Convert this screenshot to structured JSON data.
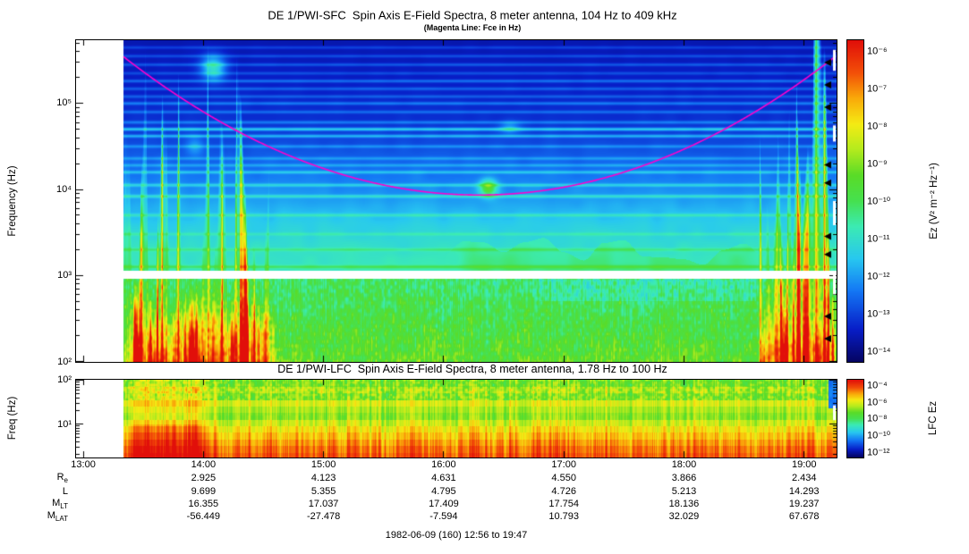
{
  "chart_data": {
    "type": "heatmap",
    "sfc": {
      "title": "DE 1/PWI-SFC  Spin Axis E-Field Spectra, 8 meter antenna, 104 Hz to 409 kHz",
      "subtitle": "(Magenta Line: Fce in Hz)",
      "ylabel": "Frequency (Hz)",
      "colorbar_label": "Ez (V² m⁻² Hz⁻¹)",
      "freq_range_hz": [
        104,
        409000
      ],
      "log_freq_range": [
        2.0,
        5.73
      ],
      "ytick_exps": [
        5,
        4,
        3,
        2
      ],
      "ytick_labels": [
        "10⁵",
        "10⁴",
        "10³",
        "10²"
      ],
      "colorbar_tick_labels": [
        "10⁻⁶",
        "10⁻⁷",
        "10⁻⁸",
        "10⁻⁹",
        "10⁻¹⁰",
        "10⁻¹¹",
        "10⁻¹²",
        "10⁻¹³",
        "10⁻¹⁴"
      ],
      "receiver_gap_log_hz": [
        2.965,
        3.05
      ],
      "fce_line": {
        "color": "#ff00cc",
        "min_hz": 8500,
        "min_log_hz": 3.93,
        "min_hour": 16.3,
        "log_curvature": 0.183
      },
      "background_profile": [
        [
          2.0,
          0.57
        ],
        [
          2.3,
          0.535
        ],
        [
          2.6,
          0.505
        ],
        [
          2.96,
          0.475
        ],
        [
          3.05,
          0.41
        ],
        [
          3.3,
          0.385
        ],
        [
          3.6,
          0.335
        ],
        [
          3.9,
          0.265
        ],
        [
          4.2,
          0.215
        ],
        [
          4.5,
          0.165
        ],
        [
          4.8,
          0.125
        ],
        [
          5.1,
          0.105
        ],
        [
          5.73,
          0.075
        ]
      ],
      "interference_lines": [
        [
          3.1,
          0.09
        ],
        [
          3.3,
          0.07
        ],
        [
          3.48,
          0.06
        ],
        [
          3.7,
          0.09
        ],
        [
          3.92,
          0.12
        ],
        [
          4.05,
          0.11
        ],
        [
          4.2,
          0.11
        ],
        [
          4.28,
          0.08
        ],
        [
          4.36,
          0.08
        ],
        [
          4.5,
          0.09
        ],
        [
          4.62,
          0.15
        ],
        [
          4.7,
          0.2
        ],
        [
          4.78,
          0.1
        ],
        [
          4.9,
          0.09
        ],
        [
          5.0,
          0.11
        ],
        [
          5.08,
          0.08
        ],
        [
          5.17,
          0.09
        ],
        [
          5.26,
          0.11
        ],
        [
          5.35,
          0.07
        ],
        [
          5.45,
          0.09
        ],
        [
          5.55,
          0.08
        ],
        [
          5.65,
          0.07
        ]
      ],
      "patches": [
        [
          14.08,
          5.42,
          0.07,
          0.1,
          0.3
        ],
        [
          16.37,
          4.02,
          0.05,
          0.07,
          0.33
        ],
        [
          16.55,
          4.72,
          0.06,
          0.05,
          0.12
        ],
        [
          13.93,
          4.5,
          0.05,
          0.08,
          0.1
        ]
      ],
      "features": [
        {
          "type": "broadband-burst",
          "hours": [
            13.33,
            14.55
          ],
          "max_freq_hz": 500000
        },
        {
          "type": "broadband-burst",
          "hours": [
            18.62,
            19.27
          ],
          "max_freq_hz": 500000
        },
        {
          "type": "emission-patch",
          "hour": 14.08,
          "freq_hz": 260000
        },
        {
          "type": "emission-patch",
          "hour": 16.37,
          "freq_hz": 10500
        },
        {
          "type": "hiss-band",
          "hours": [
            16.0,
            18.7
          ],
          "freq_hz": [
            1100,
            3300
          ]
        }
      ],
      "edge_markers_log_hz": [
        5.47,
        5.21,
        4.95,
        4.28,
        4.07,
        3.45,
        3.24,
        2.52,
        2.26
      ],
      "edge_dashes": [
        [
          0.03,
          0.095
        ],
        [
          0.265,
          0.315
        ],
        [
          0.5,
          0.575
        ],
        [
          0.725,
          0.79
        ]
      ]
    },
    "lfc": {
      "title": "DE 1/PWI-LFC  Spin Axis E-Field Spectra, 8 meter antenna, 1.78 Hz to 100 Hz",
      "ylabel": "Freq (Hz)",
      "colorbar_label": "LFC Ez",
      "freq_range_hz": [
        1.78,
        100
      ],
      "log_freq_range": [
        0.25,
        2.0
      ],
      "ytick_exps": [
        2,
        1
      ],
      "ytick_labels": [
        "10²",
        "10¹"
      ],
      "colorbar_tick_labels": [
        "10⁻⁴",
        "10⁻⁶",
        "10⁻⁸",
        "10⁻¹⁰",
        "10⁻¹²"
      ],
      "channels": [
        [
          1.85,
          0.6
        ],
        [
          1.7,
          0.655
        ],
        [
          1.55,
          0.615
        ],
        [
          1.4,
          0.705
        ],
        [
          1.25,
          0.655
        ],
        [
          1.1,
          0.625
        ],
        [
          0.95,
          0.695
        ],
        [
          0.8,
          0.75
        ],
        [
          0.65,
          0.795
        ],
        [
          0.5,
          0.84
        ],
        [
          0.35,
          0.88
        ],
        [
          0.25,
          0.905
        ]
      ],
      "edge_dashes": [
        [
          0.33,
          0.52
        ]
      ]
    },
    "x_axis": {
      "display_hour_range": [
        12.94,
        19.27
      ],
      "data_start_hour": 13.33,
      "tick_hours": [
        13,
        14,
        15,
        16,
        17,
        18,
        19
      ],
      "tick_labels": [
        "13:00",
        "14:00",
        "15:00",
        "16:00",
        "17:00",
        "18:00",
        "19:00"
      ]
    },
    "ephemeris": {
      "tick_hours": [
        14,
        15,
        16,
        17,
        18,
        19
      ],
      "rows": [
        {
          "base": "R",
          "sub": "e",
          "values": [
            "2.925",
            "4.123",
            "4.631",
            "4.550",
            "3.866",
            "2.434"
          ]
        },
        {
          "base": "L",
          "sub": "",
          "values": [
            "9.699",
            "5.355",
            "4.795",
            "4.726",
            "5.213",
            "14.293"
          ]
        },
        {
          "base": "M",
          "sub": "LT",
          "values": [
            "16.355",
            "17.037",
            "17.409",
            "17.754",
            "18.136",
            "19.237"
          ]
        },
        {
          "base": "M",
          "sub": "LAT",
          "values": [
            "-56.449",
            "-27.478",
            "-7.594",
            "10.793",
            "32.029",
            "67.678"
          ]
        }
      ]
    },
    "footer": "1982-06-09 (160) 12:56 to 19:47"
  }
}
